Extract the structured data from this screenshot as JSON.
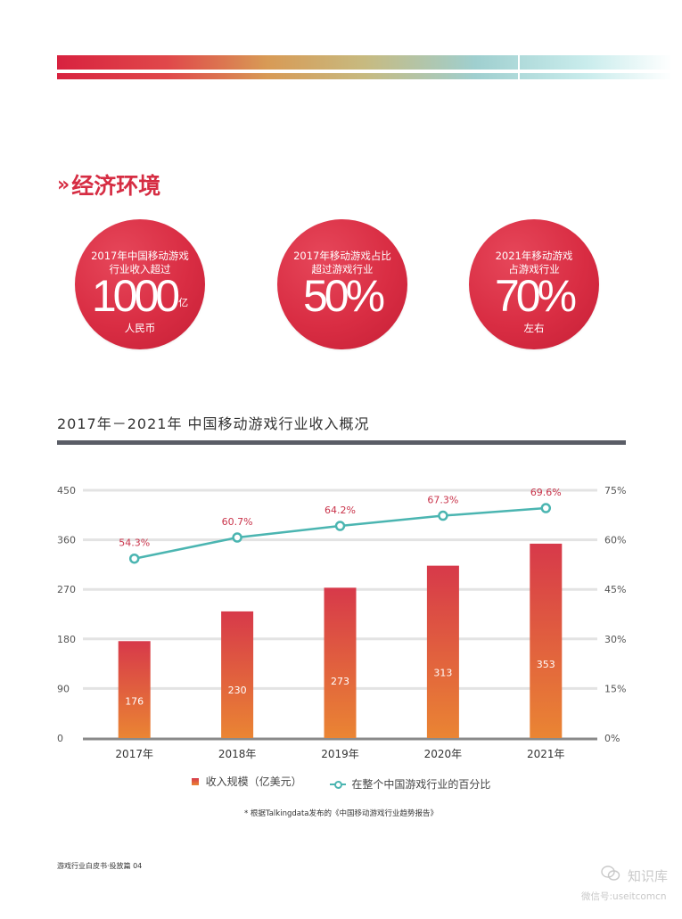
{
  "section": {
    "chevron": "»",
    "title": "经济环境"
  },
  "stats": [
    {
      "line1": "2017年中国移动游戏",
      "line2": "行业收入超过",
      "big": "1000",
      "unit": "亿",
      "sub": "人民币"
    },
    {
      "line1": "2017年移动游戏占比",
      "line2": "超过游戏行业",
      "big": "50%",
      "unit": "",
      "sub": ""
    },
    {
      "line1": "2021年移动游戏",
      "line2": "占游戏行业",
      "big": "70%",
      "unit": "",
      "sub": "左右"
    }
  ],
  "chart_title": "2017年－2021年 中国移动游戏行业收入概况",
  "chart_data": {
    "type": "bar+line",
    "title": "2017年－2021年 中国移动游戏行业收入概况",
    "categories": [
      "2017年",
      "2018年",
      "2019年",
      "2020年",
      "2021年"
    ],
    "series": [
      {
        "name": "收入规模（亿美元）",
        "type": "bar",
        "axis": "left",
        "values": [
          176,
          230,
          273,
          313,
          353
        ]
      },
      {
        "name": "在整个中国游戏行业的百分比",
        "type": "line",
        "axis": "right",
        "values": [
          54.3,
          60.7,
          64.2,
          67.3,
          69.6
        ],
        "value_labels": [
          "54.3%",
          "60.7%",
          "64.2%",
          "67.3%",
          "69.6%"
        ]
      }
    ],
    "y_left": {
      "range": [
        0,
        450
      ],
      "ticks": [
        "0",
        "90",
        "180",
        "270",
        "360",
        "450"
      ]
    },
    "y_right": {
      "range": [
        0,
        75
      ],
      "ticks": [
        "0%",
        "15%",
        "30%",
        "45%",
        "60%",
        "75%"
      ]
    },
    "grid": true,
    "legend_position": "bottom-center"
  },
  "legend": {
    "bar_label": "收入规模（亿美元）",
    "line_label": "在整个中国游戏行业的百分比"
  },
  "footnote": "* 根据Talkingdata发布的《中国移动游戏行业趋势报告》",
  "page_footer": "游戏行业白皮书·投放篇 04",
  "watermark": {
    "name": "知识库",
    "sub": "微信号:useitcomcn"
  },
  "colors": {
    "accent": "#d62d43",
    "line": "#4bb5b1",
    "bar_top": "#d7394a",
    "bar_bottom": "#ea8533",
    "rule": "#5a5d66"
  }
}
